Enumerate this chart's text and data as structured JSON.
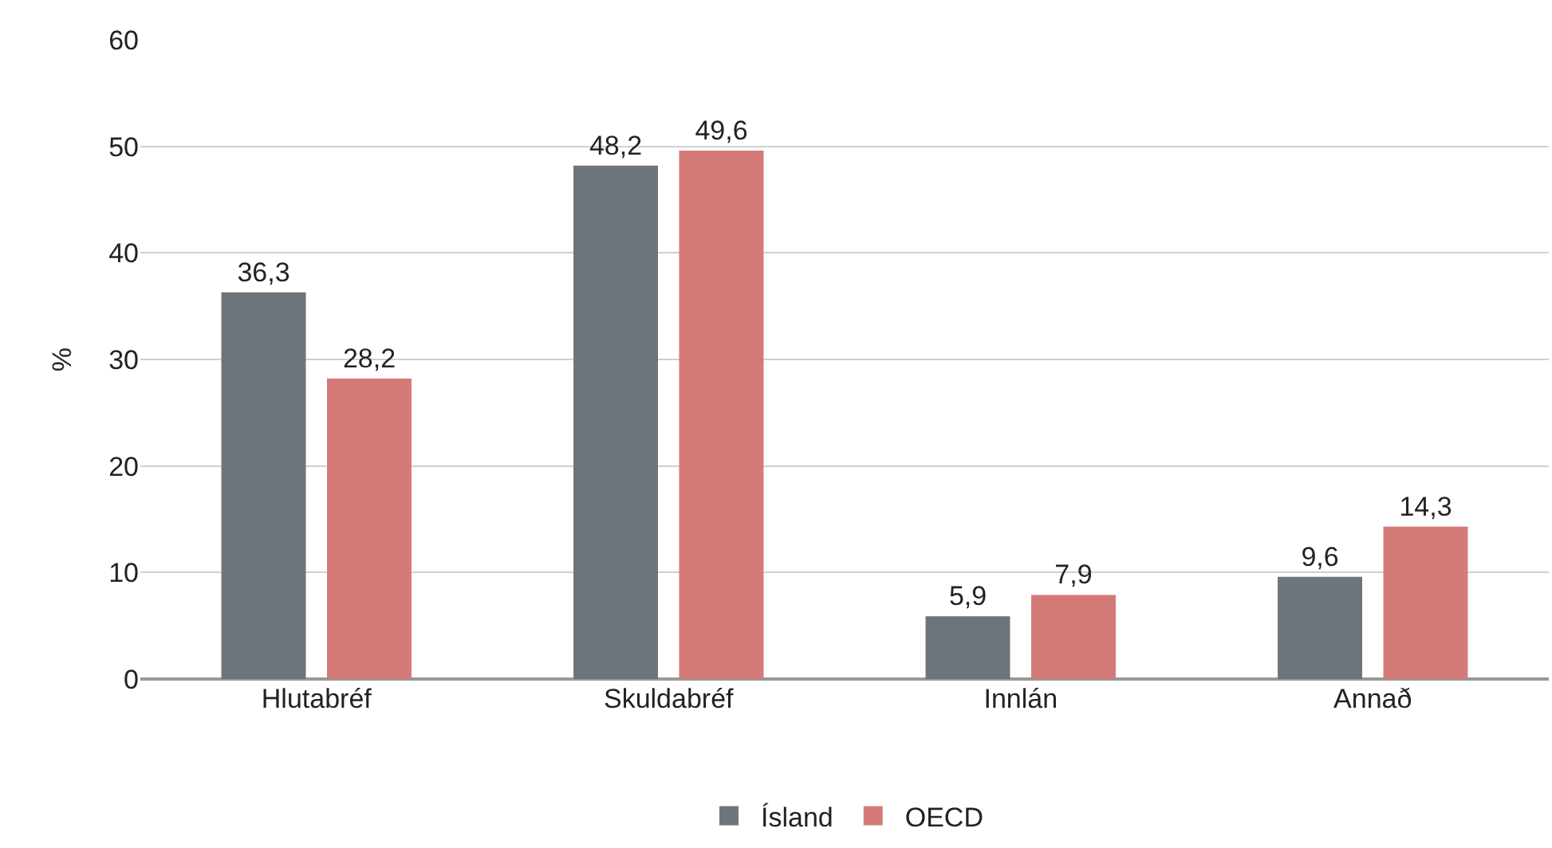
{
  "chart_data": {
    "type": "bar",
    "ylabel": "%",
    "categories": [
      "Hlutabréf",
      "Skuldabréf",
      "Innlán",
      "Annað"
    ],
    "series": [
      {
        "name": "Ísland",
        "color": "#6d757b",
        "values": [
          36.3,
          48.2,
          5.9,
          9.6
        ],
        "value_labels": [
          "36,3",
          "48,2",
          "5,9",
          "9,6"
        ]
      },
      {
        "name": "OECD",
        "color": "#d47a78",
        "values": [
          28.2,
          49.6,
          7.9,
          14.3
        ],
        "value_labels": [
          "28,2",
          "49,6",
          "7,9",
          "14,3"
        ]
      }
    ],
    "ylim": [
      0,
      60
    ],
    "yticks": [
      0,
      10,
      20,
      30,
      40,
      50,
      60
    ],
    "grid": "y",
    "legend": "bottom"
  }
}
